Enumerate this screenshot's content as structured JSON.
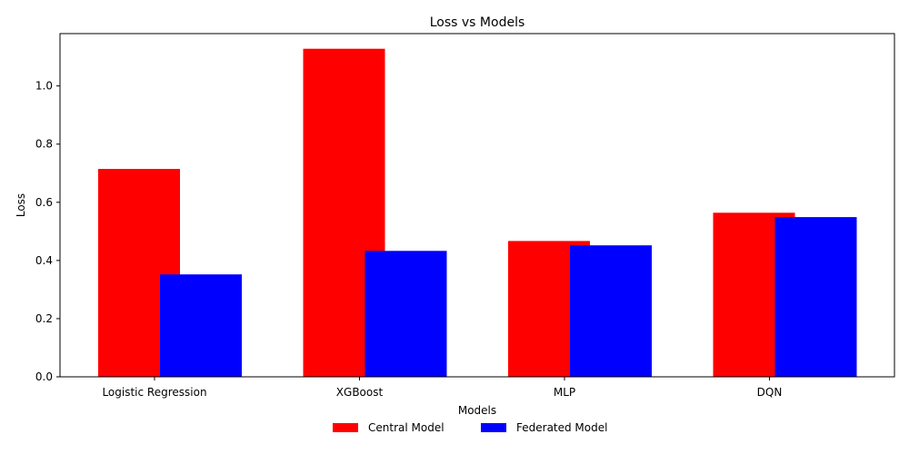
{
  "chart_data": {
    "type": "bar",
    "title": "Loss vs Models",
    "xlabel": "Models",
    "ylabel": "Loss",
    "categories": [
      "Logistic Regression",
      "XGBoost",
      "MLP",
      "DQN"
    ],
    "series": [
      {
        "name": "Central Model",
        "color": "#ff0000",
        "values": [
          0.715,
          1.128,
          0.467,
          0.564
        ]
      },
      {
        "name": "Federated Model",
        "color": "#0000ff",
        "values": [
          0.352,
          0.433,
          0.452,
          0.549
        ]
      }
    ],
    "ylim": [
      0,
      1.18
    ],
    "yticks": [
      0.0,
      0.2,
      0.4,
      0.6,
      0.8,
      1.0
    ],
    "ytick_labels": [
      "0.0",
      "0.2",
      "0.4",
      "0.6",
      "0.8",
      "1.0"
    ],
    "legend_position": "bottom-center",
    "grid": false
  }
}
